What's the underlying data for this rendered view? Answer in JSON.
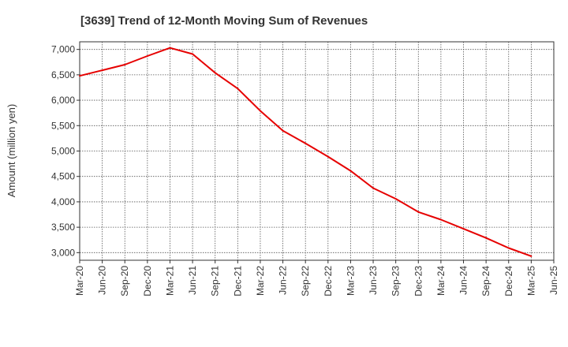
{
  "chart_data": {
    "type": "line",
    "title": "[3639]  Trend of 12-Month Moving Sum of Revenues",
    "ylabel": "Amount (million yen)",
    "xlabel": "",
    "ylim": [
      2850,
      7150
    ],
    "y_ticks": [
      "3,000",
      "3,500",
      "4,000",
      "4,500",
      "5,000",
      "5,500",
      "6,000",
      "6,500",
      "7,000"
    ],
    "y_tick_values": [
      3000,
      3500,
      4000,
      4500,
      5000,
      5500,
      6000,
      6500,
      7000
    ],
    "x_ticks": [
      "Mar-20",
      "Jun-20",
      "Sep-20",
      "Dec-20",
      "Mar-21",
      "Jun-21",
      "Sep-21",
      "Dec-21",
      "Mar-22",
      "Jun-22",
      "Sep-22",
      "Dec-22",
      "Mar-23",
      "Jun-23",
      "Sep-23",
      "Dec-23",
      "Mar-24",
      "Jun-24",
      "Sep-24",
      "Dec-24",
      "Mar-25",
      "Jun-25"
    ],
    "grid": true,
    "series": [
      {
        "color": "#e60000",
        "x": [
          "Mar-20",
          "Jun-20",
          "Sep-20",
          "Dec-20",
          "Mar-21",
          "Jun-21",
          "Sep-21",
          "Dec-21",
          "Mar-22",
          "Jun-22",
          "Sep-22",
          "Dec-22",
          "Mar-23",
          "Jun-23",
          "Sep-23",
          "Dec-23",
          "Mar-24",
          "Jun-24",
          "Sep-24",
          "Dec-24",
          "Mar-25"
        ],
        "values": [
          6480,
          6590,
          6700,
          6870,
          7030,
          6910,
          6540,
          6230,
          5790,
          5400,
          5150,
          4890,
          4610,
          4270,
          4060,
          3800,
          3650,
          3470,
          3290,
          3090,
          2930
        ]
      }
    ]
  }
}
